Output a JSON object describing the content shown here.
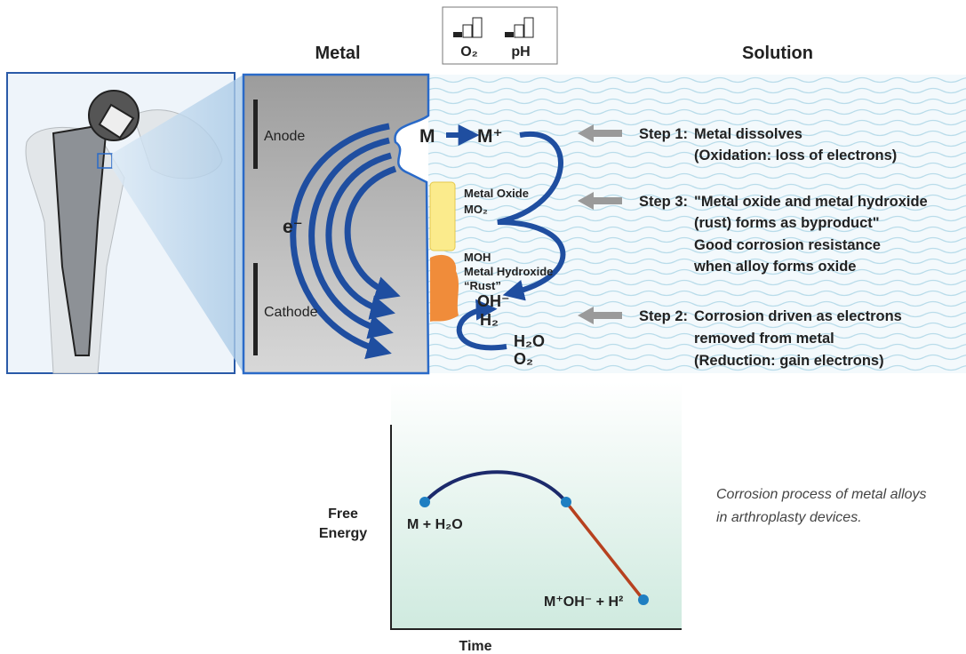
{
  "header": {
    "metal_title": "Metal",
    "solution_title": "Solution"
  },
  "indicators": {
    "o2": "O₂",
    "ph": "pH"
  },
  "metal": {
    "anode": "Anode",
    "cathode": "Cathode",
    "electron": "e⁻"
  },
  "species": {
    "metal": "M",
    "ion": "M⁺",
    "oxide_name": "Metal Oxide",
    "oxide_formula": "MO₂",
    "hydroxide_formula": "MOH",
    "hydroxide_name": "Metal Hydroxide",
    "rust": "“Rust”",
    "hydroxide_ion": "OH⁻",
    "hydrogen": "H₂",
    "water": "H₂O",
    "oxygen": "O₂"
  },
  "steps": [
    {
      "label": "Step 1:",
      "lines": [
        "Metal dissolves",
        "(Oxidation: loss of electrons)"
      ]
    },
    {
      "label": "Step 3:",
      "lines": [
        "\"Metal oxide and metal hydroxide",
        "(rust) forms as byproduct\"",
        "Good corrosion resistance",
        "when alloy forms oxide"
      ]
    },
    {
      "label": "Step 2:",
      "lines": [
        "Corrosion driven as electrons",
        "removed from metal",
        "(Reduction: gain electrons)"
      ]
    }
  ],
  "energy_plot": {
    "y_label": [
      "Free",
      "Energy"
    ],
    "x_label": "Time",
    "start_label": "M + H₂O",
    "end_label": "M⁺OH⁻ + H²"
  },
  "caption": [
    "Corrosion process of metal alloys",
    "in arthroplasty devices."
  ]
}
